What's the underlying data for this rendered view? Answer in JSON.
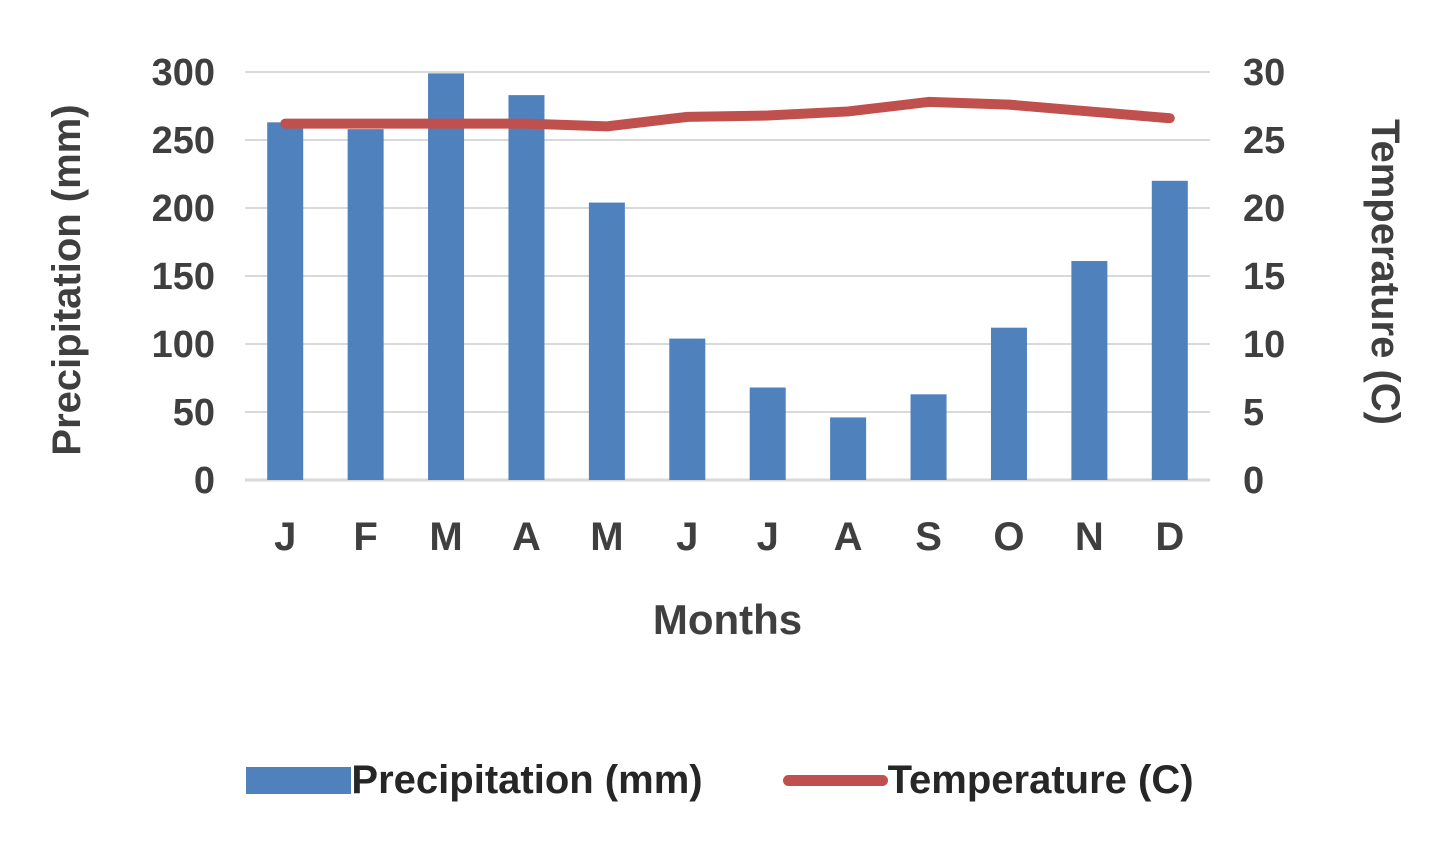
{
  "page": {
    "background": "#ffffff"
  },
  "chart_data": {
    "type": "bar",
    "subtype": "bar-line-combo",
    "categories": [
      "J",
      "F",
      "M",
      "A",
      "M",
      "J",
      "J",
      "A",
      "S",
      "O",
      "N",
      "D"
    ],
    "series": [
      {
        "name": "Precipitation (mm)",
        "type": "bar",
        "axis": "left",
        "color": "#4f81bd",
        "values": [
          263,
          258,
          299,
          283,
          204,
          104,
          68,
          46,
          63,
          112,
          161,
          220
        ]
      },
      {
        "name": "Temperature (C)",
        "type": "line",
        "axis": "right",
        "color": "#c0504d",
        "values": [
          26.2,
          26.2,
          26.2,
          26.2,
          26.0,
          26.7,
          26.8,
          27.1,
          27.8,
          27.6,
          27.1,
          26.6
        ]
      }
    ],
    "left_axis": {
      "label": "Precipitation (mm)",
      "min": 0,
      "max": 300,
      "step": 50
    },
    "right_axis": {
      "label": "Temperature (C)",
      "min": 0,
      "max": 30,
      "step": 5
    },
    "xlabel": "Months",
    "grid": true,
    "legend_position": "bottom",
    "gridline_color": "#d9d9d9",
    "text_color": "#3f3f3f"
  }
}
